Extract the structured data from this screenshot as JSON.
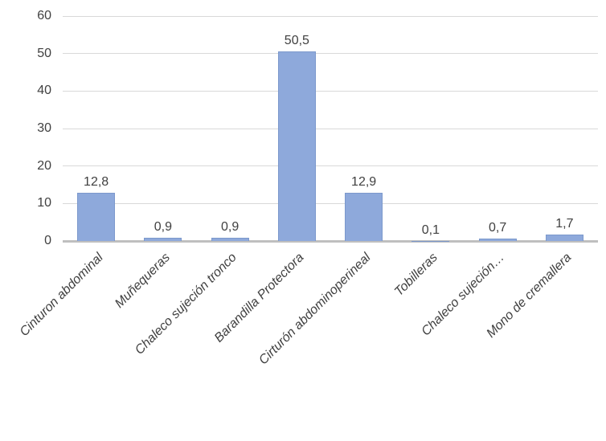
{
  "chart_data": {
    "type": "bar",
    "title": "",
    "xlabel": "",
    "ylabel": "",
    "categories": [
      "Cinturon abdominal",
      "Muñequeras",
      "Chaleco sujeción tronco",
      "Barandilla Protectora",
      "Cirturón abdominoperineal",
      "Tobilleras",
      "Chaleco sujeción…",
      "Mono de cremallera"
    ],
    "values": [
      12.8,
      0.9,
      0.9,
      50.5,
      12.9,
      0.1,
      0.7,
      1.7
    ],
    "value_labels": [
      "12,8",
      "0,9",
      "0,9",
      "50,5",
      "12,9",
      "0,1",
      "0,7",
      "1,7"
    ],
    "ylim": [
      0,
      60
    ],
    "yticks": [
      0,
      10,
      20,
      30,
      40,
      50,
      60
    ],
    "grid": true,
    "legend": "none",
    "bar_color": "#8ea9db",
    "bar_border_color": "#7c99cc",
    "axis_line_color": "#bfbfbf",
    "gridline_color": "#d9d9d9",
    "text_color": "#404040"
  }
}
